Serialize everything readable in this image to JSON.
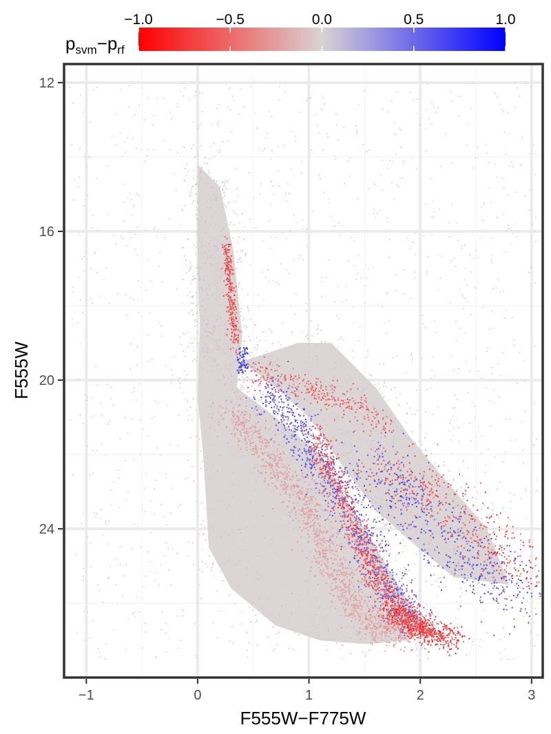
{
  "chart_data": {
    "type": "scatter",
    "title": "",
    "xlabel": "F555W−F775W",
    "ylabel": "F555W",
    "xlim": [
      -1.2,
      3.1
    ],
    "ylim": [
      28.0,
      11.5
    ],
    "y_inverted": true,
    "x_ticks": [
      -1,
      0,
      1,
      2,
      3
    ],
    "x_tick_labels": [
      "−1",
      "0",
      "1",
      "2",
      "3"
    ],
    "y_ticks": [
      12,
      16,
      20,
      24
    ],
    "y_tick_labels": [
      "12",
      "16",
      "20",
      "24"
    ],
    "grid": true,
    "colorbar": {
      "position": "top",
      "title_main": "p",
      "title_sub1": "svm",
      "title_dash": "−p",
      "title_sub2": "rf",
      "min": -1.0,
      "max": 1.0,
      "ticks": [
        -1.0,
        -0.5,
        0.0,
        0.5,
        1.0
      ],
      "tick_labels": [
        "−1.0",
        "−0.5",
        "0.0",
        "0.5",
        "1.0"
      ],
      "color_low": "#ff0000",
      "color_mid": "#d9d3d3",
      "color_high": "#0000ff"
    },
    "density_regions": [
      {
        "name": "main-body",
        "color_value": 0.0,
        "polygon": [
          [
            0.02,
            18.5
          ],
          [
            0.15,
            19.3
          ],
          [
            0.35,
            20.2
          ],
          [
            0.7,
            21.0
          ],
          [
            1.1,
            22.0
          ],
          [
            1.4,
            23.5
          ],
          [
            1.7,
            25.0
          ],
          [
            1.9,
            26.0
          ],
          [
            2.05,
            26.7
          ],
          [
            1.9,
            27.0
          ],
          [
            1.5,
            27.1
          ],
          [
            1.1,
            27.0
          ],
          [
            0.7,
            26.6
          ],
          [
            0.3,
            25.6
          ],
          [
            0.1,
            24.5
          ],
          [
            0.05,
            22.0
          ],
          [
            0.0,
            20.5
          ]
        ]
      },
      {
        "name": "upper-body",
        "color_value": 0.0,
        "polygon": [
          [
            0.0,
            14.2
          ],
          [
            0.2,
            14.8
          ],
          [
            0.32,
            16.5
          ],
          [
            0.4,
            18.8
          ],
          [
            0.35,
            20.2
          ],
          [
            0.15,
            19.3
          ],
          [
            0.02,
            18.5
          ],
          [
            0.0,
            17.0
          ]
        ]
      },
      {
        "name": "giant-branch",
        "color_value": 0.0,
        "polygon": [
          [
            0.9,
            19.0
          ],
          [
            1.2,
            19.0
          ],
          [
            1.6,
            20.2
          ],
          [
            1.9,
            21.5
          ],
          [
            2.2,
            22.6
          ],
          [
            2.6,
            24.0
          ],
          [
            2.8,
            25.5
          ],
          [
            2.3,
            25.3
          ],
          [
            1.9,
            24.3
          ],
          [
            1.6,
            23.5
          ],
          [
            1.3,
            22.3
          ],
          [
            1.0,
            21.0
          ],
          [
            0.7,
            20.2
          ],
          [
            0.4,
            19.5
          ]
        ]
      }
    ],
    "feature_tracks": [
      {
        "name": "blue-clump",
        "color_value": 0.85,
        "count": 80,
        "x": [
          0.35,
          0.45
        ],
        "y": [
          19.1,
          19.8
        ]
      },
      {
        "name": "red-upper-sequence",
        "color_value": -0.8,
        "count": 260,
        "path": [
          [
            0.25,
            16.3
          ],
          [
            0.28,
            17.2
          ],
          [
            0.3,
            18.2
          ],
          [
            0.34,
            19.0
          ]
        ],
        "spread": [
          0.02,
          0.15
        ]
      },
      {
        "name": "red-horizontal-branch",
        "color_value": -0.7,
        "count": 300,
        "path": [
          [
            0.5,
            19.7
          ],
          [
            0.8,
            20.0
          ],
          [
            1.1,
            20.3
          ],
          [
            1.4,
            20.7
          ],
          [
            1.7,
            21.3
          ]
        ],
        "spread": [
          0.06,
          0.22
        ]
      },
      {
        "name": "blue-subgiant-band",
        "color_value": 0.75,
        "count": 900,
        "path": [
          [
            0.6,
            20.2
          ],
          [
            0.8,
            21.0
          ],
          [
            1.0,
            21.8
          ],
          [
            1.2,
            22.6
          ],
          [
            1.35,
            23.4
          ],
          [
            1.5,
            24.3
          ],
          [
            1.65,
            25.2
          ],
          [
            1.8,
            26.0
          ],
          [
            1.95,
            26.6
          ]
        ],
        "spread": [
          0.09,
          0.25
        ]
      },
      {
        "name": "red-sequence-band",
        "color_value": -0.8,
        "count": 900,
        "path": [
          [
            1.05,
            21.5
          ],
          [
            1.2,
            22.5
          ],
          [
            1.35,
            23.5
          ],
          [
            1.5,
            24.5
          ],
          [
            1.6,
            25.3
          ],
          [
            1.75,
            26.0
          ],
          [
            1.9,
            26.5
          ],
          [
            2.05,
            26.8
          ]
        ],
        "spread": [
          0.06,
          0.22
        ]
      },
      {
        "name": "red-faint-tip",
        "color_value": -0.9,
        "count": 500,
        "path": [
          [
            1.7,
            26.1
          ],
          [
            1.9,
            26.5
          ],
          [
            2.1,
            26.8
          ],
          [
            2.3,
            26.9
          ]
        ],
        "spread": [
          0.08,
          0.18
        ]
      },
      {
        "name": "red-giant-branch-tail",
        "color_value": -0.8,
        "count": 450,
        "path": [
          [
            1.6,
            22.3
          ],
          [
            1.9,
            22.7
          ],
          [
            2.2,
            23.2
          ],
          [
            2.5,
            24.0
          ],
          [
            2.8,
            24.7
          ],
          [
            3.0,
            25.3
          ]
        ],
        "spread": [
          0.18,
          0.35
        ]
      },
      {
        "name": "blue-giant-branch-tail",
        "color_value": 0.8,
        "count": 450,
        "path": [
          [
            1.5,
            21.8
          ],
          [
            1.8,
            23.0
          ],
          [
            2.1,
            24.0
          ],
          [
            2.4,
            24.8
          ],
          [
            2.7,
            25.4
          ],
          [
            2.95,
            26.0
          ]
        ],
        "spread": [
          0.18,
          0.4
        ]
      },
      {
        "name": "pink-main-ridge",
        "color_value": -0.3,
        "count": 1200,
        "path": [
          [
            0.3,
            20.8
          ],
          [
            0.6,
            22.0
          ],
          [
            0.9,
            23.0
          ],
          [
            1.1,
            24.3
          ],
          [
            1.3,
            25.5
          ],
          [
            1.5,
            26.4
          ],
          [
            1.8,
            26.9
          ]
        ],
        "spread": [
          0.08,
          0.2
        ]
      }
    ],
    "background_scatter": {
      "color_value": 0.0,
      "count": 1400,
      "x": [
        -1.15,
        3.05
      ],
      "y": [
        12.0,
        27.5
      ]
    }
  }
}
